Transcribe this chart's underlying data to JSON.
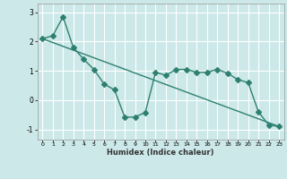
{
  "line1_x": [
    0,
    1,
    2,
    3,
    4,
    5,
    6,
    7,
    8,
    9,
    10,
    11,
    12,
    13,
    14,
    15,
    16,
    17,
    18,
    19,
    20,
    21,
    22,
    23
  ],
  "line1_y": [
    2.1,
    2.2,
    2.85,
    1.8,
    1.4,
    1.05,
    0.55,
    0.35,
    -0.58,
    -0.58,
    -0.42,
    0.95,
    0.85,
    1.05,
    1.05,
    0.95,
    0.95,
    1.05,
    0.92,
    0.7,
    0.6,
    -0.4,
    -0.85,
    -0.9
  ],
  "line2_x": [
    0,
    23
  ],
  "line2_y": [
    2.1,
    -0.9
  ],
  "color": "#2d8070",
  "xlabel": "Humidex (Indice chaleur)",
  "xlim": [
    -0.5,
    23.5
  ],
  "ylim": [
    -1.35,
    3.3
  ],
  "yticks": [
    -1,
    0,
    1,
    2,
    3
  ],
  "xticks": [
    0,
    1,
    2,
    3,
    4,
    5,
    6,
    7,
    8,
    9,
    10,
    11,
    12,
    13,
    14,
    15,
    16,
    17,
    18,
    19,
    20,
    21,
    22,
    23
  ],
  "bg_color": "#cce8e8",
  "grid_color": "#ffffff",
  "marker": "D",
  "marker_size": 3.0,
  "linewidth": 1.0
}
